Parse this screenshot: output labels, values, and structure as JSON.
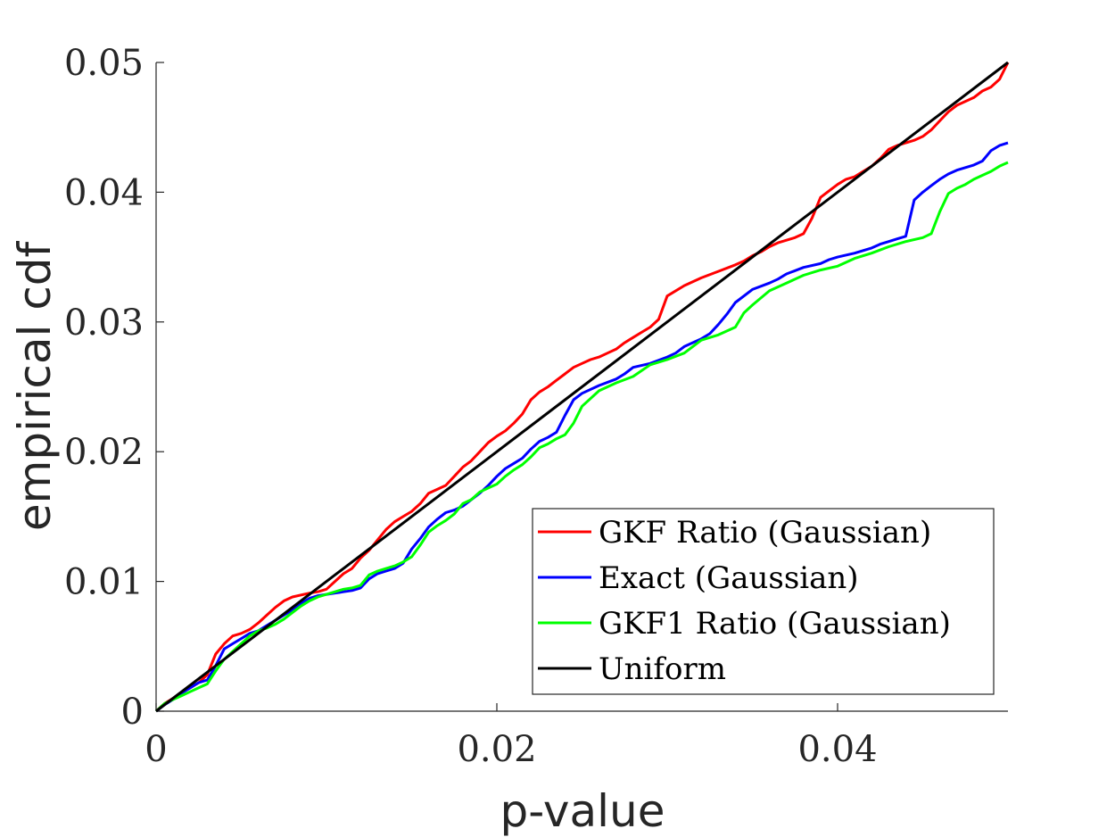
{
  "chart_data": {
    "type": "line",
    "title": "",
    "xlabel": "p-value",
    "ylabel": "empirical cdf",
    "xlim": [
      0,
      0.05
    ],
    "ylim": [
      0,
      0.05
    ],
    "xticks": [
      0,
      0.02,
      0.04
    ],
    "xtick_labels": [
      "0",
      "0.02",
      "0.04"
    ],
    "yticks": [
      0,
      0.01,
      0.02,
      0.03,
      0.04,
      0.05
    ],
    "ytick_labels": [
      "0",
      "0.01",
      "0.02",
      "0.03",
      "0.04",
      "0.05"
    ],
    "grid": false,
    "legend_position": "bottom-right",
    "series": [
      {
        "name": "GKF Ratio (Gaussian)",
        "color": "#ff0000",
        "x": [
          0,
          0.0005,
          0.001,
          0.0015,
          0.002,
          0.0025,
          0.003,
          0.0035,
          0.004,
          0.0045,
          0.005,
          0.0055,
          0.006,
          0.0065,
          0.007,
          0.0075,
          0.008,
          0.009,
          0.0095,
          0.01,
          0.0105,
          0.011,
          0.0115,
          0.012,
          0.0125,
          0.013,
          0.0135,
          0.014,
          0.0145,
          0.015,
          0.0155,
          0.016,
          0.0165,
          0.017,
          0.0175,
          0.018,
          0.0185,
          0.019,
          0.0195,
          0.02,
          0.0205,
          0.021,
          0.0215,
          0.022,
          0.0225,
          0.023,
          0.0235,
          0.024,
          0.0245,
          0.025,
          0.0255,
          0.026,
          0.0265,
          0.027,
          0.0275,
          0.028,
          0.0285,
          0.029,
          0.0295,
          0.03,
          0.031,
          0.032,
          0.033,
          0.034,
          0.0345,
          0.035,
          0.0355,
          0.036,
          0.0365,
          0.037,
          0.0375,
          0.038,
          0.0385,
          0.039,
          0.0395,
          0.04,
          0.0405,
          0.041,
          0.0415,
          0.042,
          0.0425,
          0.043,
          0.0435,
          0.044,
          0.0445,
          0.045,
          0.0455,
          0.046,
          0.0465,
          0.047,
          0.0475,
          0.048,
          0.0485,
          0.049,
          0.0495,
          0.05
        ],
        "y": [
          0,
          0.0006,
          0.001,
          0.0014,
          0.0018,
          0.0022,
          0.0028,
          0.0044,
          0.0052,
          0.0058,
          0.006,
          0.0063,
          0.0068,
          0.0074,
          0.008,
          0.0085,
          0.0088,
          0.0091,
          0.0092,
          0.0094,
          0.01,
          0.0106,
          0.011,
          0.0118,
          0.0124,
          0.0132,
          0.014,
          0.0146,
          0.015,
          0.0154,
          0.016,
          0.0168,
          0.0171,
          0.0174,
          0.0181,
          0.0188,
          0.0193,
          0.02,
          0.0207,
          0.0212,
          0.0216,
          0.0222,
          0.0229,
          0.024,
          0.0246,
          0.025,
          0.0255,
          0.026,
          0.0265,
          0.0268,
          0.0271,
          0.0273,
          0.0276,
          0.0279,
          0.0284,
          0.0288,
          0.0292,
          0.0296,
          0.0302,
          0.032,
          0.0328,
          0.0334,
          0.0339,
          0.0344,
          0.0347,
          0.0351,
          0.0354,
          0.0358,
          0.0361,
          0.0363,
          0.0365,
          0.0368,
          0.038,
          0.0396,
          0.0401,
          0.0406,
          0.041,
          0.0412,
          0.0416,
          0.042,
          0.0426,
          0.0433,
          0.0436,
          0.0438,
          0.044,
          0.0443,
          0.0448,
          0.0455,
          0.0462,
          0.0467,
          0.047,
          0.0473,
          0.0478,
          0.0481,
          0.0487,
          0.05
        ]
      },
      {
        "name": "Exact (Gaussian)",
        "color": "#0000ff",
        "x": [
          0,
          0.0005,
          0.001,
          0.0015,
          0.002,
          0.0025,
          0.003,
          0.0035,
          0.004,
          0.0045,
          0.005,
          0.0055,
          0.006,
          0.0065,
          0.007,
          0.0075,
          0.008,
          0.0085,
          0.009,
          0.0095,
          0.01,
          0.0105,
          0.011,
          0.0115,
          0.012,
          0.0125,
          0.013,
          0.0135,
          0.014,
          0.0145,
          0.015,
          0.0155,
          0.016,
          0.0165,
          0.017,
          0.0175,
          0.018,
          0.0185,
          0.019,
          0.0195,
          0.02,
          0.0205,
          0.021,
          0.0215,
          0.022,
          0.0225,
          0.023,
          0.0235,
          0.024,
          0.0245,
          0.025,
          0.026,
          0.027,
          0.0275,
          0.028,
          0.029,
          0.03,
          0.0305,
          0.031,
          0.032,
          0.0325,
          0.033,
          0.0335,
          0.034,
          0.035,
          0.036,
          0.0365,
          0.037,
          0.038,
          0.039,
          0.0395,
          0.04,
          0.041,
          0.042,
          0.0425,
          0.043,
          0.0435,
          0.044,
          0.0445,
          0.045,
          0.0455,
          0.046,
          0.0465,
          0.047,
          0.0475,
          0.048,
          0.0485,
          0.049,
          0.0495,
          0.05
        ],
        "y": [
          0,
          0.0005,
          0.0009,
          0.0014,
          0.0018,
          0.0022,
          0.0024,
          0.0035,
          0.0048,
          0.0052,
          0.0056,
          0.006,
          0.0062,
          0.0066,
          0.007,
          0.0074,
          0.0078,
          0.0083,
          0.0087,
          0.0089,
          0.009,
          0.0091,
          0.0092,
          0.0093,
          0.0095,
          0.0102,
          0.0106,
          0.0108,
          0.011,
          0.0114,
          0.0125,
          0.0133,
          0.0142,
          0.0148,
          0.0153,
          0.0155,
          0.0158,
          0.0163,
          0.0168,
          0.0174,
          0.0181,
          0.0187,
          0.0191,
          0.0195,
          0.0202,
          0.0208,
          0.0211,
          0.0215,
          0.0228,
          0.024,
          0.0245,
          0.0251,
          0.0256,
          0.026,
          0.0265,
          0.0268,
          0.0273,
          0.0276,
          0.0281,
          0.0287,
          0.0291,
          0.0298,
          0.0306,
          0.0315,
          0.0325,
          0.033,
          0.0333,
          0.0337,
          0.0342,
          0.0345,
          0.0348,
          0.035,
          0.0353,
          0.0357,
          0.036,
          0.0362,
          0.0364,
          0.0366,
          0.0394,
          0.04,
          0.0405,
          0.041,
          0.0414,
          0.0417,
          0.0419,
          0.0421,
          0.0424,
          0.0432,
          0.0436,
          0.0438
        ]
      },
      {
        "name": "GKF1 Ratio (Gaussian)",
        "color": "#00ff00",
        "x": [
          0,
          0.0005,
          0.001,
          0.0015,
          0.002,
          0.0025,
          0.003,
          0.0035,
          0.004,
          0.0045,
          0.005,
          0.0055,
          0.006,
          0.0065,
          0.007,
          0.0075,
          0.008,
          0.0085,
          0.009,
          0.0095,
          0.01,
          0.0105,
          0.011,
          0.0115,
          0.012,
          0.0125,
          0.013,
          0.0135,
          0.014,
          0.0145,
          0.015,
          0.0155,
          0.016,
          0.0165,
          0.017,
          0.0175,
          0.018,
          0.0185,
          0.019,
          0.0195,
          0.02,
          0.0205,
          0.021,
          0.0215,
          0.022,
          0.0225,
          0.023,
          0.0235,
          0.024,
          0.0245,
          0.025,
          0.026,
          0.027,
          0.028,
          0.029,
          0.03,
          0.031,
          0.032,
          0.033,
          0.034,
          0.0345,
          0.035,
          0.036,
          0.037,
          0.038,
          0.039,
          0.04,
          0.041,
          0.042,
          0.043,
          0.044,
          0.045,
          0.0455,
          0.046,
          0.0465,
          0.047,
          0.0475,
          0.048,
          0.0485,
          0.049,
          0.0495,
          0.05
        ],
        "y": [
          0,
          0.0006,
          0.0009,
          0.0012,
          0.0015,
          0.0018,
          0.0021,
          0.0031,
          0.004,
          0.0046,
          0.0052,
          0.0058,
          0.0062,
          0.0064,
          0.0067,
          0.0071,
          0.0076,
          0.0081,
          0.0085,
          0.0088,
          0.009,
          0.0092,
          0.0094,
          0.0095,
          0.0097,
          0.0105,
          0.0108,
          0.011,
          0.0112,
          0.0115,
          0.0119,
          0.0128,
          0.0138,
          0.0143,
          0.0147,
          0.0152,
          0.016,
          0.0163,
          0.0169,
          0.0172,
          0.0175,
          0.0181,
          0.0186,
          0.019,
          0.0196,
          0.0203,
          0.0206,
          0.021,
          0.0213,
          0.0222,
          0.0235,
          0.0247,
          0.0253,
          0.0258,
          0.0267,
          0.0271,
          0.0276,
          0.0286,
          0.029,
          0.0296,
          0.0307,
          0.0313,
          0.0324,
          0.033,
          0.0336,
          0.034,
          0.0343,
          0.0349,
          0.0353,
          0.0358,
          0.0362,
          0.0365,
          0.0368,
          0.0385,
          0.0399,
          0.0403,
          0.0406,
          0.041,
          0.0413,
          0.0416,
          0.042,
          0.0423
        ]
      },
      {
        "name": "Uniform",
        "color": "#000000",
        "x": [
          0,
          0.05
        ],
        "y": [
          0,
          0.05
        ]
      }
    ]
  }
}
